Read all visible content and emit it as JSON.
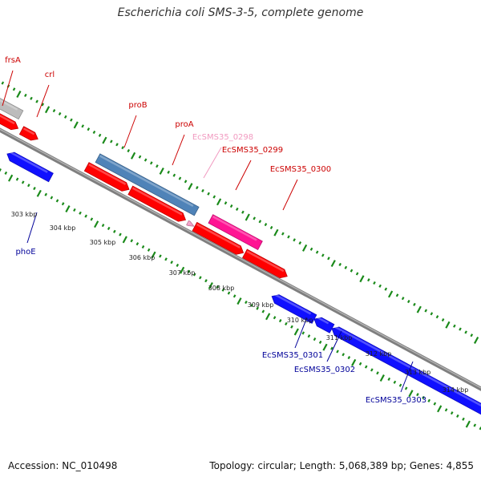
{
  "title": "Escherichia coli SMS-3-5, complete genome",
  "footer": {
    "accession": "Accession: NC_010498",
    "topology": "Topology: circular; Length: 5,068,389 bp; Genes: 4,855"
  },
  "colors": {
    "backbone": "#7f7f7f",
    "forward_gene": "#ff0000",
    "reverse_gene": "#1010ff",
    "operon": "#4f83b8",
    "pseudo_light": "#f5a0c8",
    "pseudo_magenta": "#ff1493",
    "grey_feature": "#bcbcbc",
    "tick": "#1a8a1a",
    "label_forward": "#cc0000",
    "label_reverse": "#000099",
    "label_light": "#f19ac0"
  },
  "scale_labels": [
    "303 kbp",
    "304 kbp",
    "305 kbp",
    "306 kbp",
    "307 kbp",
    "308 kbp",
    "309 kbp",
    "310 kbp",
    "311 kbp",
    "312 kbp",
    "313 kbp",
    "314 kbp"
  ],
  "gene_labels": [
    {
      "text": "frsA",
      "color": "label_forward"
    },
    {
      "text": "crl",
      "color": "label_forward"
    },
    {
      "text": "proB",
      "color": "label_forward"
    },
    {
      "text": "proA",
      "color": "label_forward"
    },
    {
      "text": "EcSMS35_0298",
      "color": "label_light"
    },
    {
      "text": "EcSMS35_0299",
      "color": "label_forward"
    },
    {
      "text": "EcSMS35_0300",
      "color": "label_forward"
    },
    {
      "text": "phoE",
      "color": "label_reverse"
    },
    {
      "text": "EcSMS35_0301",
      "color": "label_reverse"
    },
    {
      "text": "EcSMS35_0302",
      "color": "label_reverse"
    },
    {
      "text": "EcSMS35_0303",
      "color": "label_reverse"
    }
  ]
}
